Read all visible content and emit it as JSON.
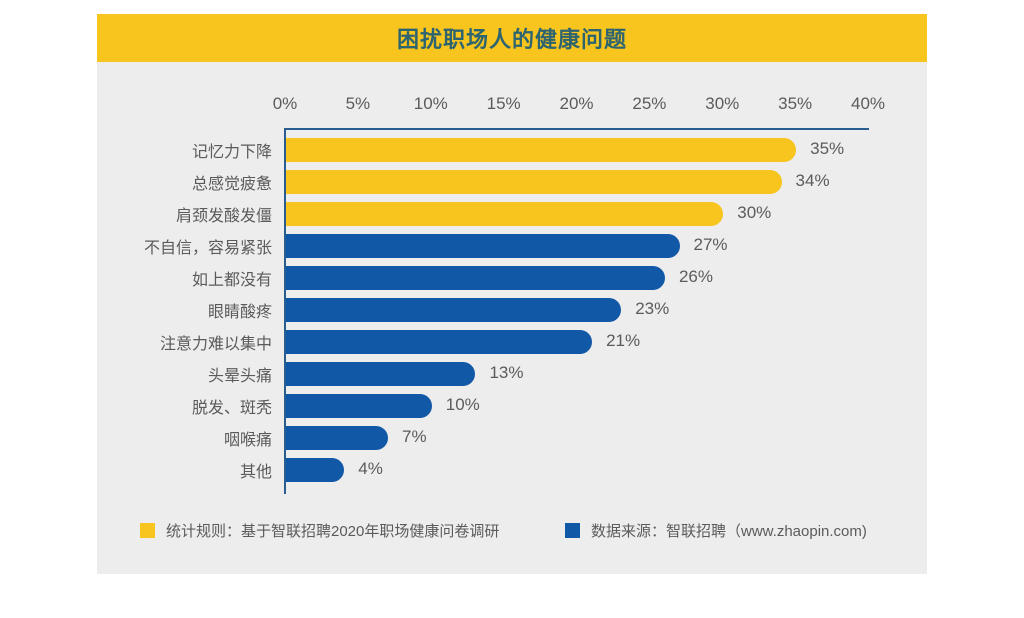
{
  "page": {
    "background": "#ffffff",
    "panel_bg": "#EDEDED"
  },
  "header": {
    "title": "困扰职场人的健康问题",
    "bg": "#F7C51E",
    "text_color": "#2D6470"
  },
  "chart_data": {
    "type": "bar",
    "orientation": "horizontal",
    "title": "困扰职场人的健康问题",
    "xlim": [
      0,
      40
    ],
    "x_ticks": [
      "0%",
      "5%",
      "10%",
      "15%",
      "20%",
      "25%",
      "30%",
      "35%",
      "40%"
    ],
    "x_tick_values": [
      0,
      5,
      10,
      15,
      20,
      25,
      30,
      35,
      40
    ],
    "categories": [
      "记忆力下降",
      "总感觉疲惫",
      "肩颈发酸发僵",
      "不自信，容易紧张",
      "如上都没有",
      "眼睛酸疼",
      "注意力难以集中",
      "头晕头痛",
      "脱发、斑秃",
      "咽喉痛",
      "其他"
    ],
    "values": [
      35,
      34,
      30,
      27,
      26,
      23,
      21,
      13,
      10,
      7,
      4
    ],
    "value_labels": [
      "35%",
      "34%",
      "30%",
      "27%",
      "26%",
      "23%",
      "21%",
      "13%",
      "10%",
      "7%",
      "4%"
    ],
    "bar_colors": [
      "#F7C51E",
      "#F7C51E",
      "#F7C51E",
      "#1159A6",
      "#1159A6",
      "#1159A6",
      "#1159A6",
      "#1159A6",
      "#1159A6",
      "#1159A6",
      "#1159A6"
    ],
    "grid": false,
    "axis_color": "#2A5D8F",
    "label_color": "#5b5b5b"
  },
  "footer": {
    "legend": [
      {
        "swatch_color": "#F7C51E",
        "label": "统计规则：基于智联招聘2020年职场健康问卷调研"
      },
      {
        "swatch_color": "#1159A6",
        "label": "数据来源：智联招聘（www.zhaopin.com)"
      }
    ]
  }
}
